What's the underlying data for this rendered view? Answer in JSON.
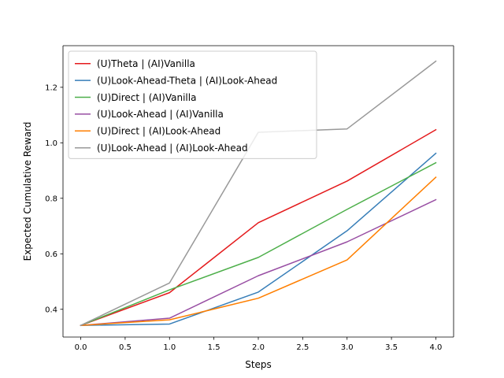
{
  "chart_data": {
    "type": "line",
    "xlabel": "Steps",
    "ylabel": "Expected Cumulative Reward",
    "xlim": [
      -0.2,
      4.2
    ],
    "ylim": [
      0.3,
      1.35
    ],
    "xticks": [
      0.0,
      0.5,
      1.0,
      1.5,
      2.0,
      2.5,
      3.0,
      3.5,
      4.0
    ],
    "xtick_labels": [
      "0.0",
      "0.5",
      "1.0",
      "1.5",
      "2.0",
      "2.5",
      "3.0",
      "3.5",
      "4.0"
    ],
    "yticks": [
      0.4,
      0.6,
      0.8,
      1.0,
      1.2
    ],
    "ytick_labels": [
      "0.4",
      "0.6",
      "0.8",
      "1.0",
      "1.2"
    ],
    "grid": false,
    "legend_position": "top-left",
    "x": [
      0,
      1,
      2,
      3,
      4
    ],
    "series": [
      {
        "name": "(U)Theta | (AI)Vanilla",
        "color": "#e41a1c",
        "values": [
          0.342,
          0.46,
          0.712,
          0.862,
          1.047
        ]
      },
      {
        "name": "(U)Look-Ahead-Theta | (AI)Look-Ahead",
        "color": "#377eb8",
        "values": [
          0.342,
          0.347,
          0.462,
          0.683,
          0.962
        ]
      },
      {
        "name": "(U)Direct | (AI)Vanilla",
        "color": "#4daf4a",
        "values": [
          0.342,
          0.47,
          0.587,
          0.76,
          0.928
        ]
      },
      {
        "name": "(U)Look-Ahead | (AI)Vanilla",
        "color": "#984ea3",
        "values": [
          0.342,
          0.368,
          0.521,
          0.643,
          0.795
        ]
      },
      {
        "name": "(U)Direct | (AI)Look-Ahead",
        "color": "#ff7f00",
        "values": [
          0.342,
          0.362,
          0.44,
          0.578,
          0.876
        ]
      },
      {
        "name": "(U)Look-Ahead | (AI)Look-Ahead",
        "color": "#999999",
        "values": [
          0.342,
          0.495,
          1.038,
          1.05,
          1.294
        ]
      }
    ]
  }
}
